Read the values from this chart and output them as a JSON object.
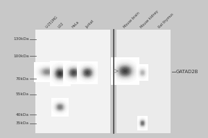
{
  "fig_bg": "#c8c8c8",
  "panel_bg": "#f2f2f2",
  "panel2_bg": "#ebebeb",
  "mw_markers": [
    "130kDa",
    "100kDa",
    "70kDa",
    "55kDa",
    "40kDa",
    "35kDa"
  ],
  "mw_positions": [
    130,
    100,
    70,
    55,
    40,
    35
  ],
  "lane_labels": [
    "U-251MG",
    "LO2",
    "HeLa",
    "Jurkat",
    "Mouse brain",
    "Mouse kidney",
    "Rat thymus"
  ],
  "annotation_label": "GATAD2B",
  "annotation_mw": 78,
  "bands": [
    {
      "lane": 0,
      "mw": 78,
      "intensity": 0.6,
      "wx": 0.28,
      "wy": 0.022
    },
    {
      "lane": 1,
      "mw": 76,
      "intensity": 0.92,
      "wx": 0.22,
      "wy": 0.028
    },
    {
      "lane": 1,
      "mw": 45,
      "intensity": 0.65,
      "wx": 0.18,
      "wy": 0.02
    },
    {
      "lane": 2,
      "mw": 77,
      "intensity": 0.85,
      "wx": 0.22,
      "wy": 0.025
    },
    {
      "lane": 3,
      "mw": 77,
      "intensity": 0.85,
      "wx": 0.22,
      "wy": 0.025
    },
    {
      "lane": 4,
      "mw": 79,
      "intensity": 0.88,
      "wx": 0.3,
      "wy": 0.03
    },
    {
      "lane": 5,
      "mw": 77,
      "intensity": 0.45,
      "wx": 0.12,
      "wy": 0.018
    },
    {
      "lane": 5,
      "mw": 35,
      "intensity": 0.7,
      "wx": 0.1,
      "wy": 0.016
    }
  ]
}
